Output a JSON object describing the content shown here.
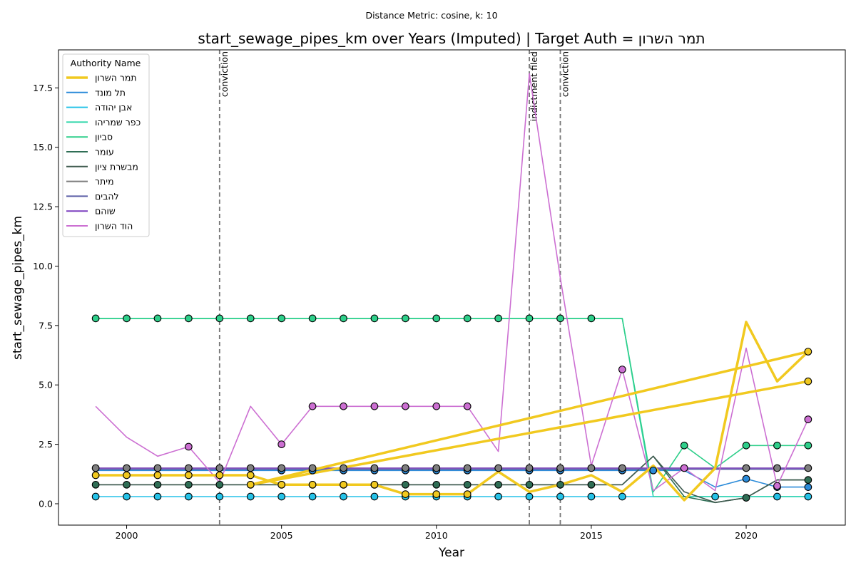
{
  "chart_data": {
    "type": "line",
    "suptitle": "Distance Metric: cosine, k: 10",
    "title": "start_sewage_pipes_km over Years (Imputed) | Target Auth = תמר השרון",
    "xlabel": "Year",
    "ylabel": "start_sewage_pipes_km",
    "xlim": [
      1997.8,
      2023.2
    ],
    "ylim": [
      -0.9,
      19.1
    ],
    "xticks": [
      2000,
      2005,
      2010,
      2015,
      2020
    ],
    "yticks": [
      0.0,
      2.5,
      5.0,
      7.5,
      10.0,
      12.5,
      15.0,
      17.5
    ],
    "ytick_labels": [
      "0.0",
      "2.5",
      "5.0",
      "7.5",
      "10.0",
      "12.5",
      "15.0",
      "17.5"
    ],
    "grid": false,
    "legend": {
      "title": "Authority Name",
      "placement": "top-left"
    },
    "events": [
      {
        "x": 2003,
        "label": "conviction"
      },
      {
        "x": 2013,
        "label": "indictment filed"
      },
      {
        "x": 2014,
        "label": "conviction"
      }
    ],
    "x": [
      1999,
      2000,
      2001,
      2002,
      2003,
      2004,
      2005,
      2006,
      2007,
      2008,
      2009,
      2010,
      2011,
      2012,
      2013,
      2014,
      2015,
      2016,
      2017,
      2018,
      2019,
      2020,
      2021,
      2022
    ],
    "series": [
      {
        "name": "תמר השרון",
        "color": "#f1c91f",
        "target": true,
        "values": [
          1.2,
          1.2,
          1.2,
          1.2,
          1.2,
          1.2,
          0.8,
          0.8,
          0.8,
          0.8,
          0.4,
          0.4,
          0.4,
          1.35,
          0.5,
          0.8,
          1.2,
          0.5,
          1.6,
          0.15,
          1.5,
          7.65,
          5.15,
          6.4
        ],
        "markers": [
          true,
          true,
          true,
          true,
          true,
          true,
          true,
          true,
          true,
          true,
          true,
          true,
          true,
          false,
          false,
          false,
          false,
          false,
          false,
          false,
          false,
          false,
          false,
          true
        ],
        "extra_points": [
          [
            2004,
            0.8
          ],
          [
            2022,
            5.15
          ]
        ]
      },
      {
        "name": "תל מונד",
        "color": "#2b8bd9",
        "values": [
          1.4,
          1.4,
          1.4,
          1.4,
          1.4,
          1.4,
          1.4,
          1.4,
          1.4,
          1.4,
          1.4,
          1.4,
          1.4,
          1.4,
          1.4,
          1.4,
          1.4,
          1.4,
          1.4,
          1.4,
          0.7,
          1.05,
          0.7,
          0.7
        ],
        "markers": [
          false,
          false,
          false,
          false,
          false,
          false,
          true,
          true,
          true,
          true,
          true,
          true,
          true,
          false,
          true,
          true,
          false,
          true,
          true,
          false,
          false,
          true,
          true,
          true
        ]
      },
      {
        "name": "אבן יהודה",
        "color": "#25c2e8",
        "values": [
          0.3,
          0.3,
          0.3,
          0.3,
          0.3,
          0.3,
          0.3,
          0.3,
          0.3,
          0.3,
          0.3,
          0.3,
          0.3,
          0.3,
          0.3,
          0.3,
          0.3,
          0.3,
          0.3,
          0.3,
          0.3,
          0.3,
          0.3,
          0.3
        ],
        "markers": [
          true,
          true,
          true,
          true,
          true,
          true,
          true,
          true,
          true,
          true,
          true,
          true,
          true,
          true,
          true,
          true,
          true,
          true,
          false,
          false,
          true,
          false,
          true,
          true
        ]
      },
      {
        "name": "כפר שמריהו",
        "color": "#2fd6aa",
        "values": [
          7.8,
          7.8,
          7.8,
          7.8,
          7.8,
          7.8,
          7.8,
          7.8,
          7.8,
          7.8,
          7.8,
          7.8,
          7.8,
          7.8,
          7.8,
          7.8,
          7.8,
          7.8,
          0.3,
          0.3,
          0.3,
          0.3,
          0.3,
          0.3
        ],
        "markers": [
          false,
          false,
          false,
          false,
          false,
          false,
          false,
          false,
          false,
          false,
          false,
          false,
          false,
          false,
          false,
          false,
          false,
          false,
          false,
          false,
          false,
          false,
          false,
          false
        ]
      },
      {
        "name": "סביון",
        "color": "#2ecf8a",
        "values": [
          7.8,
          7.8,
          7.8,
          7.8,
          7.8,
          7.8,
          7.8,
          7.8,
          7.8,
          7.8,
          7.8,
          7.8,
          7.8,
          7.8,
          7.8,
          7.8,
          7.8,
          7.8,
          0.5,
          2.45,
          1.5,
          2.45,
          2.45,
          2.45
        ],
        "markers": [
          true,
          true,
          true,
          true,
          true,
          true,
          true,
          true,
          true,
          true,
          true,
          true,
          true,
          true,
          true,
          true,
          true,
          false,
          false,
          true,
          false,
          true,
          true,
          true
        ]
      },
      {
        "name": "עומר",
        "color": "#2f6e55",
        "values": [
          0.8,
          0.8,
          0.8,
          0.8,
          0.8,
          0.8,
          0.8,
          0.8,
          0.8,
          0.8,
          0.8,
          0.8,
          0.8,
          0.8,
          0.8,
          0.8,
          0.8,
          0.8,
          2.0,
          0.3,
          0.05,
          0.25,
          1.0,
          1.0
        ],
        "markers": [
          true,
          true,
          true,
          true,
          true,
          true,
          true,
          true,
          true,
          true,
          true,
          true,
          true,
          true,
          true,
          true,
          true,
          false,
          false,
          false,
          false,
          true,
          false,
          true
        ]
      },
      {
        "name": "מבשרת ציון",
        "color": "#3f5a4f",
        "values": [
          0.8,
          0.8,
          0.8,
          0.8,
          0.8,
          0.8,
          0.8,
          0.8,
          0.8,
          0.8,
          0.8,
          0.8,
          0.8,
          0.8,
          0.8,
          0.8,
          0.8,
          0.8,
          2.0,
          0.5,
          0.05,
          0.25,
          1.0,
          1.0
        ],
        "markers": [
          false,
          false,
          false,
          false,
          false,
          false,
          false,
          false,
          false,
          false,
          false,
          false,
          false,
          false,
          false,
          false,
          false,
          false,
          false,
          false,
          false,
          false,
          false,
          false
        ]
      },
      {
        "name": "מיתר",
        "color": "#7f7f7f",
        "values": [
          1.5,
          1.5,
          1.5,
          1.5,
          1.5,
          1.5,
          1.5,
          1.5,
          1.5,
          1.5,
          1.5,
          1.5,
          1.5,
          1.5,
          1.5,
          1.5,
          1.5,
          1.5,
          1.5,
          1.5,
          1.5,
          1.5,
          1.5,
          1.5
        ],
        "markers": [
          true,
          true,
          true,
          true,
          true,
          true,
          true,
          true,
          true,
          true,
          true,
          true,
          true,
          true,
          true,
          true,
          true,
          true,
          false,
          false,
          false,
          true,
          true,
          true
        ]
      },
      {
        "name": "להבים",
        "color": "#5b5ea6",
        "values": [
          1.45,
          1.45,
          1.45,
          1.45,
          1.45,
          1.45,
          1.45,
          1.45,
          1.45,
          1.45,
          1.45,
          1.45,
          1.45,
          1.45,
          1.45,
          1.45,
          1.45,
          1.45,
          1.45,
          1.45,
          1.45,
          1.45,
          1.45,
          1.45
        ],
        "markers": [
          false,
          false,
          false,
          false,
          false,
          false,
          false,
          false,
          false,
          false,
          false,
          false,
          false,
          false,
          false,
          false,
          false,
          false,
          false,
          false,
          false,
          false,
          false,
          false
        ]
      },
      {
        "name": "שוהם",
        "color": "#7b3fbf",
        "values": [
          1.5,
          1.5,
          1.5,
          1.5,
          1.5,
          1.5,
          1.5,
          1.5,
          1.5,
          1.5,
          1.5,
          1.5,
          1.5,
          1.5,
          1.5,
          1.5,
          1.5,
          1.5,
          1.5,
          1.5,
          1.5,
          1.5,
          1.5,
          1.5
        ],
        "markers": [
          false,
          false,
          false,
          false,
          false,
          false,
          false,
          false,
          false,
          false,
          false,
          false,
          false,
          false,
          false,
          false,
          false,
          false,
          false,
          false,
          false,
          false,
          false,
          false
        ]
      },
      {
        "name": "הוד השרון",
        "color": "#cc6fd2",
        "values": [
          4.1,
          2.8,
          2.0,
          2.4,
          0.9,
          4.1,
          2.5,
          4.1,
          4.1,
          4.1,
          4.1,
          4.1,
          4.1,
          2.2,
          18.1,
          9.5,
          1.6,
          5.65,
          0.55,
          1.5,
          0.55,
          6.55,
          0.75,
          3.55
        ],
        "markers": [
          false,
          false,
          false,
          true,
          false,
          false,
          true,
          true,
          true,
          true,
          true,
          true,
          true,
          false,
          false,
          false,
          false,
          true,
          false,
          true,
          false,
          false,
          true,
          true
        ]
      }
    ]
  }
}
